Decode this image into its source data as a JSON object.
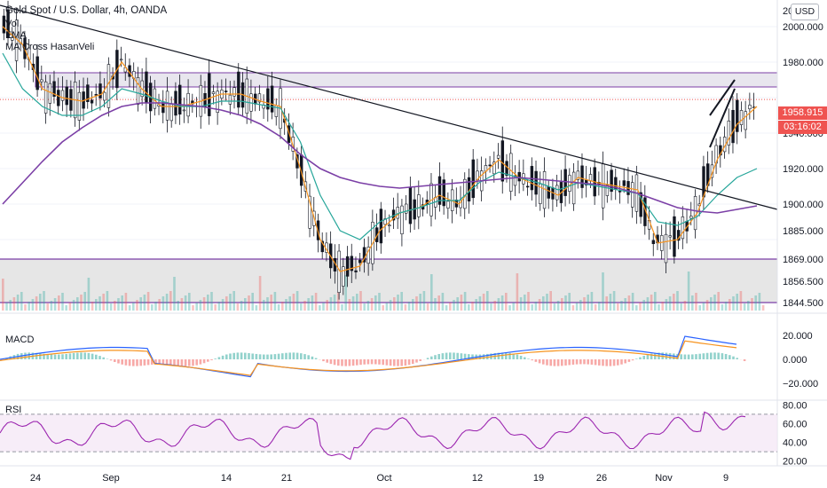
{
  "header": {
    "title": "Gold Spot / U.S. Dollar, 4h, OANDA",
    "vol_label": "Vol",
    "ema_label": "EMA",
    "ma_label": "MA Cross HasanVeli",
    "macd_label": "MACD",
    "rsi_label": "RSI",
    "currency_button": "USD"
  },
  "price_tags": {
    "last_price": "1958.915",
    "countdown": "03:16:02"
  },
  "colors": {
    "up": "#26a69a",
    "down": "#ef5350",
    "ema": "#f7931e",
    "ma_fast": "#26a69a",
    "ma_slow": "#7b3fa6",
    "zone": "#7b3fa6",
    "trend": "#131722",
    "rsi": "#9c27b0"
  },
  "chart_data": {
    "type": "candlestick",
    "x_ticks": [
      "24",
      "Sep",
      "14",
      "21",
      "Oct",
      "12",
      "19",
      "26",
      "Nov",
      "9"
    ],
    "y_ticks": [
      "2000.000",
      "1980.000",
      "1958.915",
      "1940.000",
      "1920.000",
      "1900.000",
      "1885.000",
      "1869.000",
      "1856.500",
      "1844.500"
    ],
    "y_cutoff_label": "20",
    "ylim": [
      1840,
      2015
    ],
    "series": [
      {
        "name": "EMA",
        "values": [
          2000,
          1990,
          1965,
          1960,
          1958,
          1962,
          1980,
          1965,
          1955,
          1955,
          1958,
          1962,
          1962,
          1958,
          1955,
          1920,
          1880,
          1862,
          1865,
          1885,
          1895,
          1898,
          1905,
          1900,
          1915,
          1925,
          1915,
          1910,
          1905,
          1915,
          1912,
          1910,
          1908,
          1878,
          1880,
          1895,
          1925,
          1945,
          1955
        ]
      },
      {
        "name": "MA Cross HasanVeli fast",
        "values": [
          1985,
          1965,
          1955,
          1950,
          1950,
          1955,
          1965,
          1962,
          1958,
          1955,
          1955,
          1958,
          1958,
          1956,
          1954,
          1935,
          1905,
          1885,
          1880,
          1890,
          1895,
          1898,
          1902,
          1902,
          1912,
          1918,
          1915,
          1912,
          1908,
          1912,
          1910,
          1908,
          1906,
          1890,
          1888,
          1893,
          1905,
          1915,
          1920
        ]
      },
      {
        "name": "MA Cross HasanVeli slow",
        "values": [
          1900,
          1912,
          1924,
          1935,
          1943,
          1950,
          1955,
          1957,
          1957,
          1956,
          1955,
          1953,
          1950,
          1945,
          1938,
          1928,
          1920,
          1915,
          1912,
          1910,
          1909,
          1910,
          1911,
          1912,
          1913,
          1914,
          1915,
          1914,
          1913,
          1912,
          1911,
          1909,
          1906,
          1902,
          1898,
          1896,
          1895,
          1897,
          1899
        ]
      }
    ],
    "resistance_zone": [
      1966,
      1974
    ],
    "support_zone": [
      1844.5,
      1869
    ],
    "channel": [
      [
        1932,
        1965
      ],
      [
        1950,
        1970
      ]
    ],
    "macd": {
      "y_ticks": [
        "20.000",
        "0.000",
        "−20.000"
      ],
      "ylim": [
        -25,
        25
      ]
    },
    "rsi": {
      "y_ticks": [
        "80.00",
        "60.00",
        "40.00",
        "20.00"
      ],
      "ylim": [
        20,
        85
      ],
      "band": [
        30,
        70
      ]
    }
  }
}
